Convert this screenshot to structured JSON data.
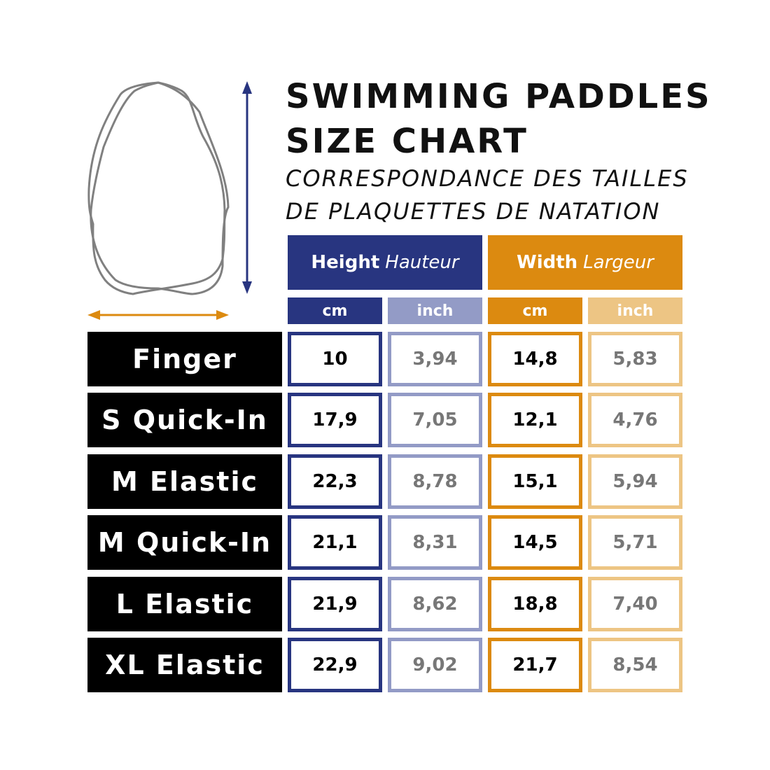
{
  "title": {
    "line1": "SWIMMING PADDLES",
    "line2": "SIZE CHART"
  },
  "subtitle": {
    "line1": "CORRESPONDANCE DES TAILLES",
    "line2": "DE PLAQUETTES DE NATATION"
  },
  "colors": {
    "height": "#283580",
    "height_light": "#939bc6",
    "width": "#dc8a10",
    "width_light": "#edc584",
    "name_bg": "#000000",
    "outline": "#808080"
  },
  "icons": {
    "paddle": "paddle-outline-icon",
    "height_arrow": "vertical-arrow-icon",
    "width_arrow": "horizontal-arrow-icon"
  },
  "headers": {
    "height": {
      "en": "Height",
      "fr": "Hauteur"
    },
    "width": {
      "en": "Width",
      "fr": "Largeur"
    },
    "units": [
      "cm",
      "inch",
      "cm",
      "inch"
    ]
  },
  "rows": [
    {
      "name": "Finger",
      "values": [
        "10",
        "3,94",
        "14,8",
        "5,83"
      ]
    },
    {
      "name": "S Quick-In",
      "values": [
        "17,9",
        "7,05",
        "12,1",
        "4,76"
      ]
    },
    {
      "name": "M Elastic",
      "values": [
        "22,3",
        "8,78",
        "15,1",
        "5,94"
      ]
    },
    {
      "name": "M Quick-In",
      "values": [
        "21,1",
        "8,31",
        "14,5",
        "5,71"
      ]
    },
    {
      "name": "L Elastic",
      "values": [
        "21,9",
        "8,62",
        "18,8",
        "7,40"
      ]
    },
    {
      "name": "XL Elastic",
      "values": [
        "22,9",
        "9,02",
        "21,7",
        "8,54"
      ]
    }
  ]
}
